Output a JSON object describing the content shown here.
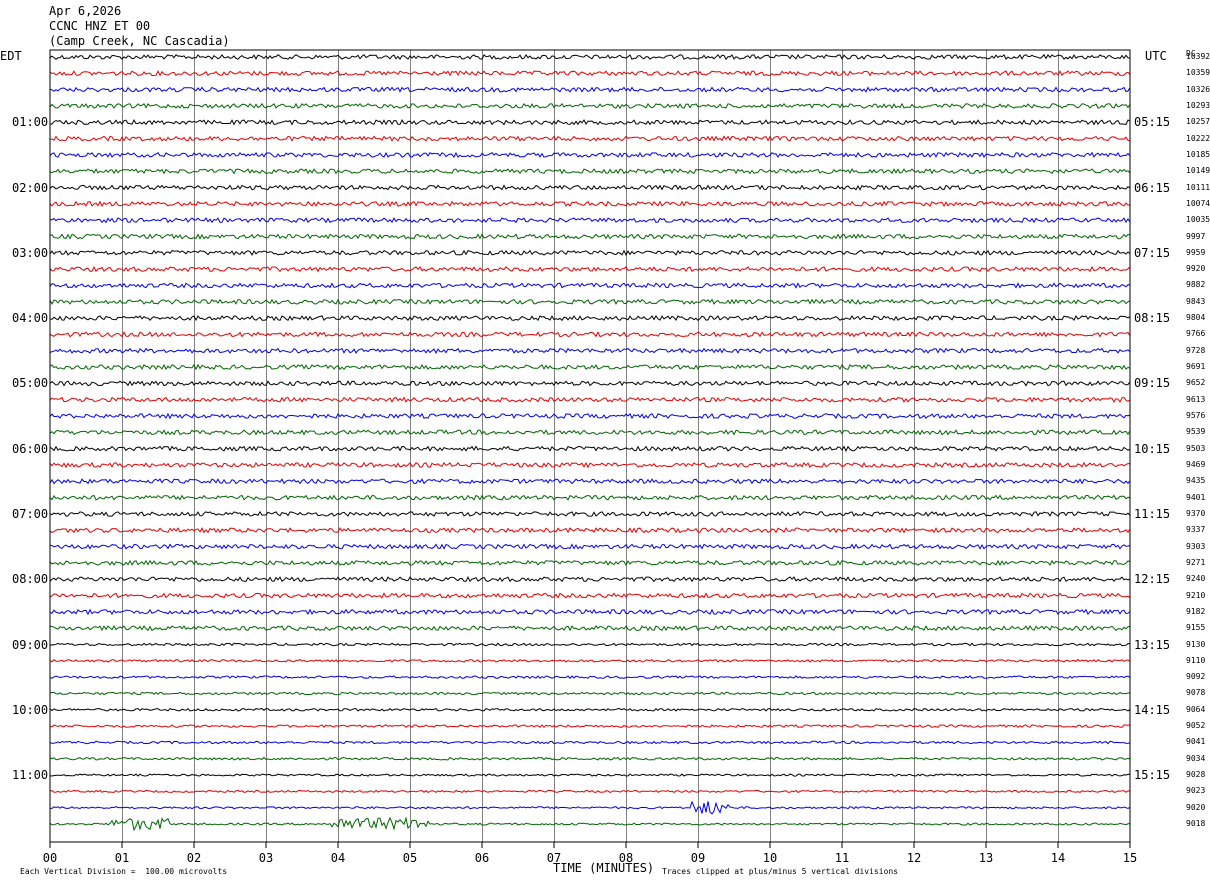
{
  "header": {
    "date": "Apr 6,2026",
    "station": "CCNC HNZ ET 00",
    "location": "(Camp Creek, NC Cascadia)"
  },
  "chart_data": {
    "type": "line",
    "title": "",
    "xlabel": "TIME (MINUTES)",
    "ylabel_left": "EDT",
    "ylabel_right": "UTC",
    "dc_label": "DC",
    "xlim": [
      0,
      15
    ],
    "x_ticks": [
      "00",
      "01",
      "02",
      "03",
      "04",
      "05",
      "06",
      "07",
      "08",
      "09",
      "10",
      "11",
      "12",
      "13",
      "14",
      "15"
    ],
    "trace_colors": [
      "#000000",
      "#e00000",
      "#0000e0",
      "#006400"
    ],
    "left_hour_labels": [
      "01:00",
      "02:00",
      "03:00",
      "04:00",
      "05:00",
      "06:00",
      "07:00",
      "08:00",
      "09:00",
      "10:00",
      "11:00"
    ],
    "right_hour_labels": [
      "05:15",
      "06:15",
      "07:15",
      "08:15",
      "09:15",
      "10:15",
      "11:15",
      "12:15",
      "13:15",
      "14:15",
      "15:15"
    ],
    "dc_offsets": [
      10392,
      10359,
      10326,
      10293,
      10257,
      10222,
      10185,
      10149,
      10111,
      10074,
      10035,
      9997,
      9959,
      9920,
      9882,
      9843,
      9804,
      9766,
      9728,
      9691,
      9652,
      9613,
      9576,
      9539,
      9503,
      9469,
      9435,
      9401,
      9370,
      9337,
      9303,
      9271,
      9240,
      9210,
      9182,
      9155,
      9130,
      9110,
      9092,
      9078,
      9064,
      9052,
      9041,
      9034,
      9028,
      9023,
      9020,
      9018
    ],
    "grid": true,
    "traces_per_hour": 4,
    "minutes_per_trace": 15
  },
  "footer": {
    "left_note": "Each Vertical Division =  100.00 microvolts",
    "right_note": "Traces clipped at plus/minus 5 vertical divisions"
  }
}
